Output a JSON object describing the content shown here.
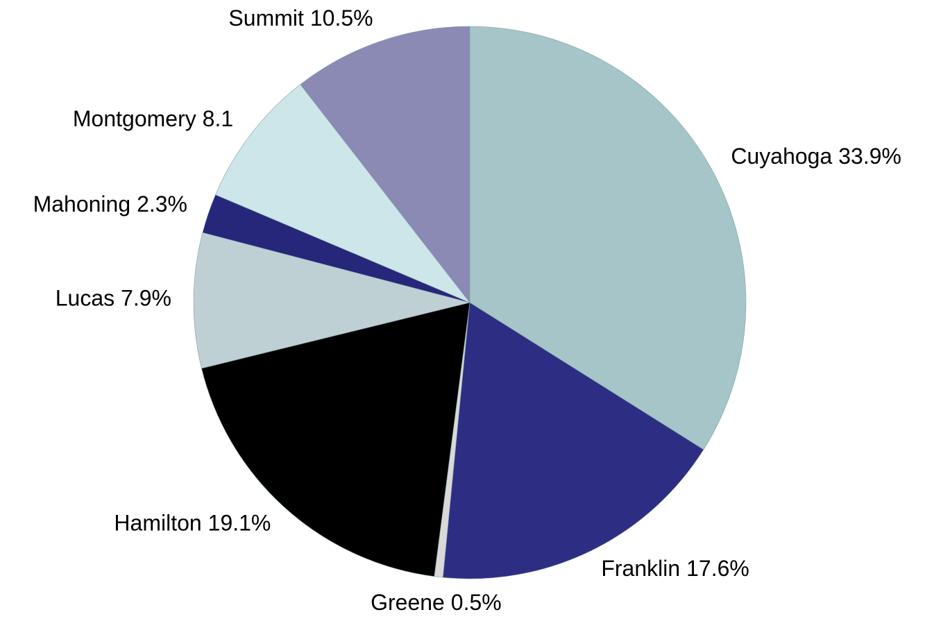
{
  "chart_data": {
    "type": "pie",
    "categories": [
      "Cuyahoga",
      "Franklin",
      "Greene",
      "Hamilton",
      "Lucas",
      "Mahoning",
      "Montgomery",
      "Summit"
    ],
    "values": [
      33.9,
      17.6,
      0.5,
      19.1,
      7.9,
      2.3,
      8.1,
      10.5
    ],
    "value_labels": [
      "33.9%",
      "17.6%",
      "0.5%",
      "19.1%",
      "7.9%",
      "2.3%",
      "8.1",
      "10.5%"
    ],
    "colors": [
      "#a5c5c8",
      "#2e2d84",
      "#d9d9d9",
      "#000000",
      "#bfd0d5",
      "#26267a",
      "#cde6ea",
      "#8a8ab5"
    ]
  }
}
